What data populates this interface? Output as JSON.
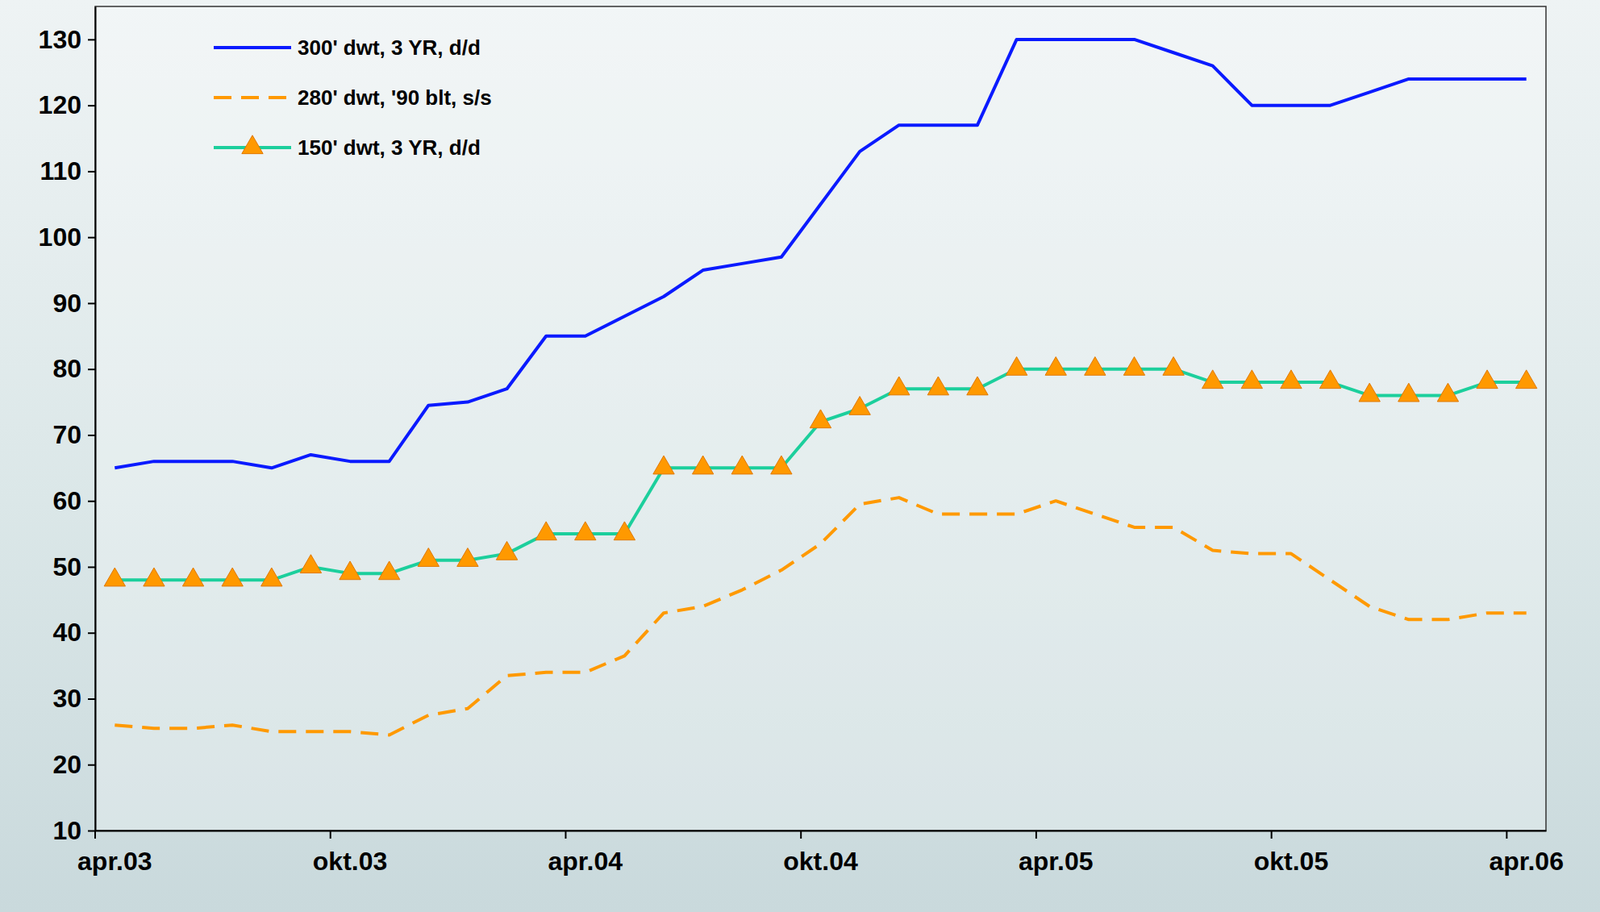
{
  "chart_data": {
    "type": "line",
    "categories": [
      "apr.03",
      null,
      null,
      null,
      null,
      null,
      "okt.03",
      null,
      null,
      null,
      null,
      null,
      "apr.04",
      null,
      null,
      null,
      null,
      null,
      "okt.04",
      null,
      null,
      null,
      null,
      null,
      "apr.05",
      null,
      null,
      null,
      null,
      null,
      "okt.05",
      null,
      null,
      null,
      null,
      null,
      "apr.06"
    ],
    "series": [
      {
        "name": "300' dwt, 3 YR, d/d",
        "color": "#0a1aff",
        "line_style": "solid",
        "values": [
          65,
          66,
          66,
          66,
          65,
          67,
          66,
          66,
          74.5,
          75,
          77,
          85,
          85,
          88,
          91,
          95,
          96,
          97,
          105,
          113,
          117,
          117,
          117,
          130,
          130,
          130,
          130,
          128,
          126,
          120,
          120,
          120,
          122,
          124,
          124,
          124,
          124
        ]
      },
      {
        "name": "280' dwt, '90 blt, s/s",
        "color": "#ff9900",
        "line_style": "dashed",
        "values": [
          26,
          25.5,
          25.5,
          26,
          25,
          25,
          25,
          24.5,
          27.5,
          28.5,
          33.5,
          34,
          34,
          36.5,
          43,
          44,
          46.5,
          49.5,
          53.5,
          59.5,
          60.5,
          58,
          58,
          58,
          60,
          58,
          56,
          56,
          52.5,
          52,
          52,
          48,
          44,
          42,
          42,
          43,
          43
        ]
      },
      {
        "name": "150' dwt, 3 YR, d/d",
        "color": "#1ccf9c",
        "line_style": "solid",
        "marker": "triangle",
        "values": [
          48,
          48,
          48,
          48,
          48,
          50,
          49,
          49,
          51,
          51,
          52,
          55,
          55,
          55,
          65,
          65,
          65,
          65,
          72,
          74,
          77,
          77,
          77,
          80,
          80,
          80,
          80,
          80,
          78,
          78,
          78,
          78,
          76,
          76,
          76,
          78,
          78
        ]
      }
    ],
    "ylim": [
      10,
      135
    ],
    "yticks": [
      10,
      20,
      30,
      40,
      50,
      60,
      70,
      80,
      90,
      100,
      110,
      120,
      130
    ],
    "grid": false,
    "legend": "upper left"
  }
}
